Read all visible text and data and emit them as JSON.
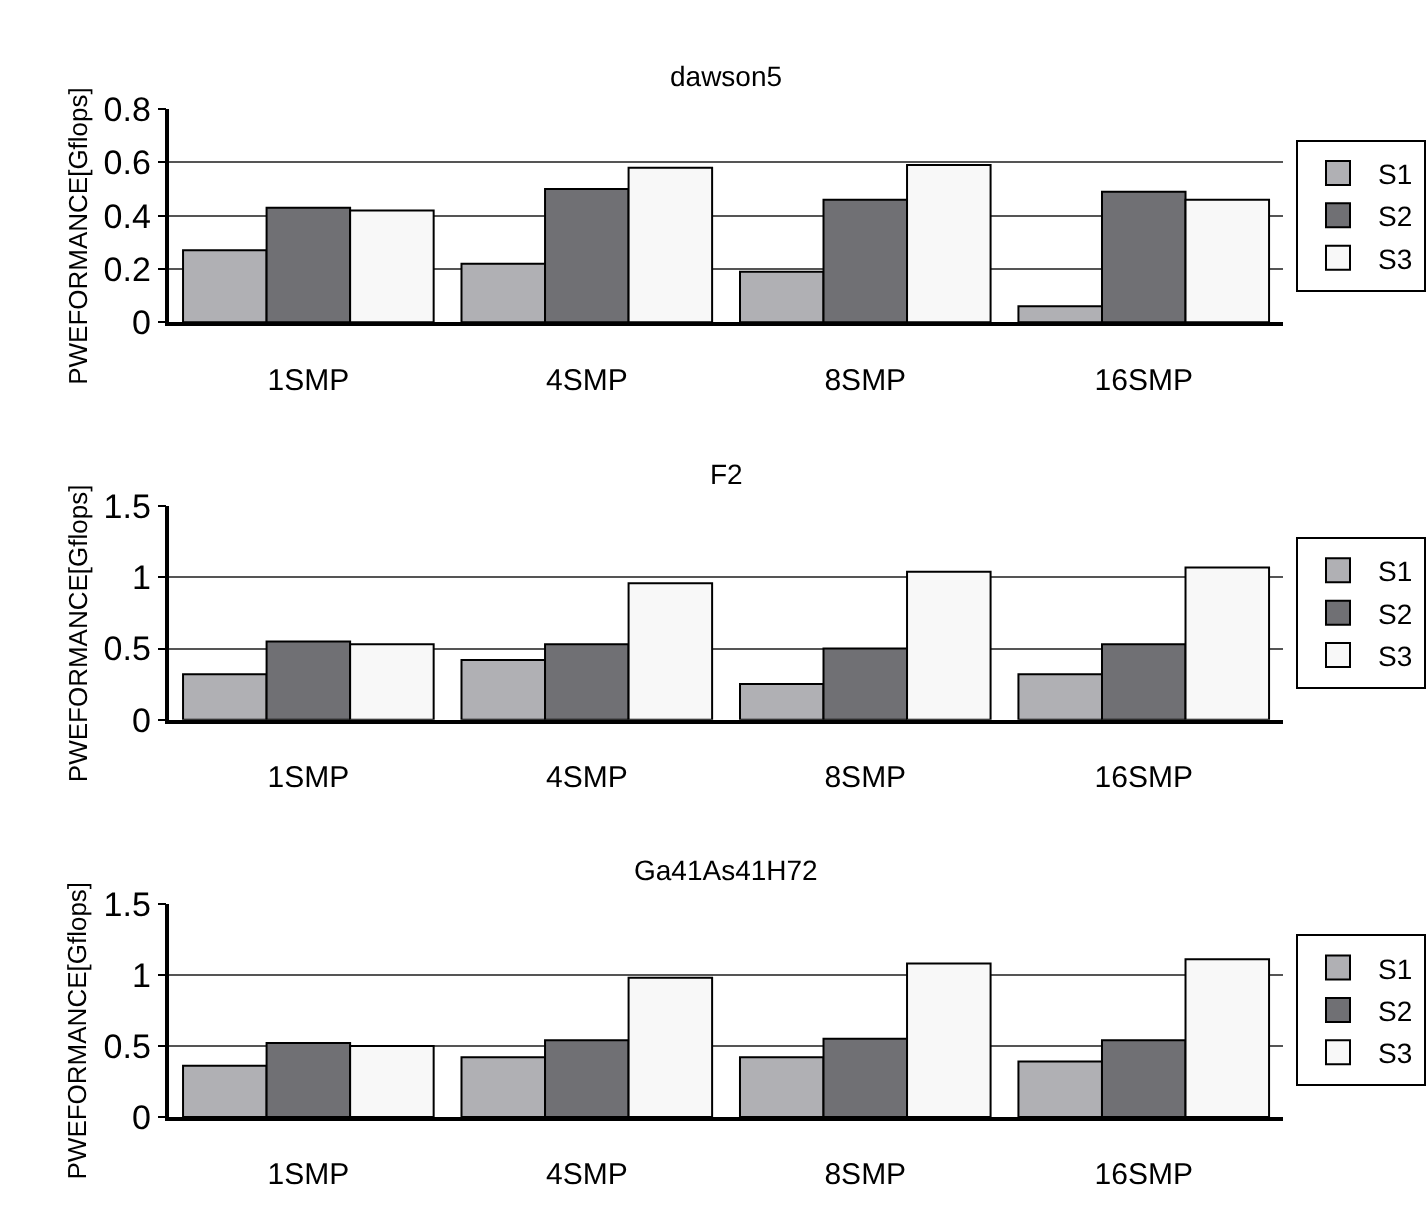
{
  "chart_data": [
    {
      "type": "bar",
      "title": "dawson5",
      "ylabel": "PWEFORMANCE[Gflops]",
      "categories": [
        "1SMP",
        "4SMP",
        "8SMP",
        "16SMP"
      ],
      "ylim": [
        0,
        0.8
      ],
      "yticks": [
        0,
        0.2,
        0.4,
        0.6,
        0.8
      ],
      "grid": "y",
      "legend": "right",
      "series": [
        {
          "name": "S1",
          "color": "#b0b0b4",
          "values": [
            0.27,
            0.22,
            0.19,
            0.06
          ]
        },
        {
          "name": "S2",
          "color": "#707074",
          "values": [
            0.43,
            0.5,
            0.46,
            0.49
          ]
        },
        {
          "name": "S3",
          "color": "#f8f8f8",
          "values": [
            0.42,
            0.58,
            0.59,
            0.46
          ]
        }
      ]
    },
    {
      "type": "bar",
      "title": "F2",
      "ylabel": "PWEFORMANCE[Gflops]",
      "categories": [
        "1SMP",
        "4SMP",
        "8SMP",
        "16SMP"
      ],
      "ylim": [
        0,
        1.5
      ],
      "yticks": [
        0,
        0.5,
        1,
        1.5
      ],
      "grid": "y",
      "legend": "right",
      "series": [
        {
          "name": "S1",
          "color": "#b0b0b4",
          "values": [
            0.32,
            0.42,
            0.25,
            0.32
          ]
        },
        {
          "name": "S2",
          "color": "#707074",
          "values": [
            0.55,
            0.53,
            0.5,
            0.53
          ]
        },
        {
          "name": "S3",
          "color": "#f8f8f8",
          "values": [
            0.53,
            0.96,
            1.04,
            1.07
          ]
        }
      ]
    },
    {
      "type": "bar",
      "title": "Ga41As41H72",
      "ylabel": "PWEFORMANCE[Gflops]",
      "categories": [
        "1SMP",
        "4SMP",
        "8SMP",
        "16SMP"
      ],
      "ylim": [
        0,
        1.5
      ],
      "yticks": [
        0,
        0.5,
        1,
        1.5
      ],
      "grid": "y",
      "legend": "right",
      "series": [
        {
          "name": "S1",
          "color": "#b0b0b4",
          "values": [
            0.36,
            0.42,
            0.42,
            0.39
          ]
        },
        {
          "name": "S2",
          "color": "#707074",
          "values": [
            0.52,
            0.54,
            0.55,
            0.54
          ]
        },
        {
          "name": "S3",
          "color": "#f8f8f8",
          "values": [
            0.5,
            0.98,
            1.08,
            1.11
          ]
        }
      ]
    }
  ]
}
